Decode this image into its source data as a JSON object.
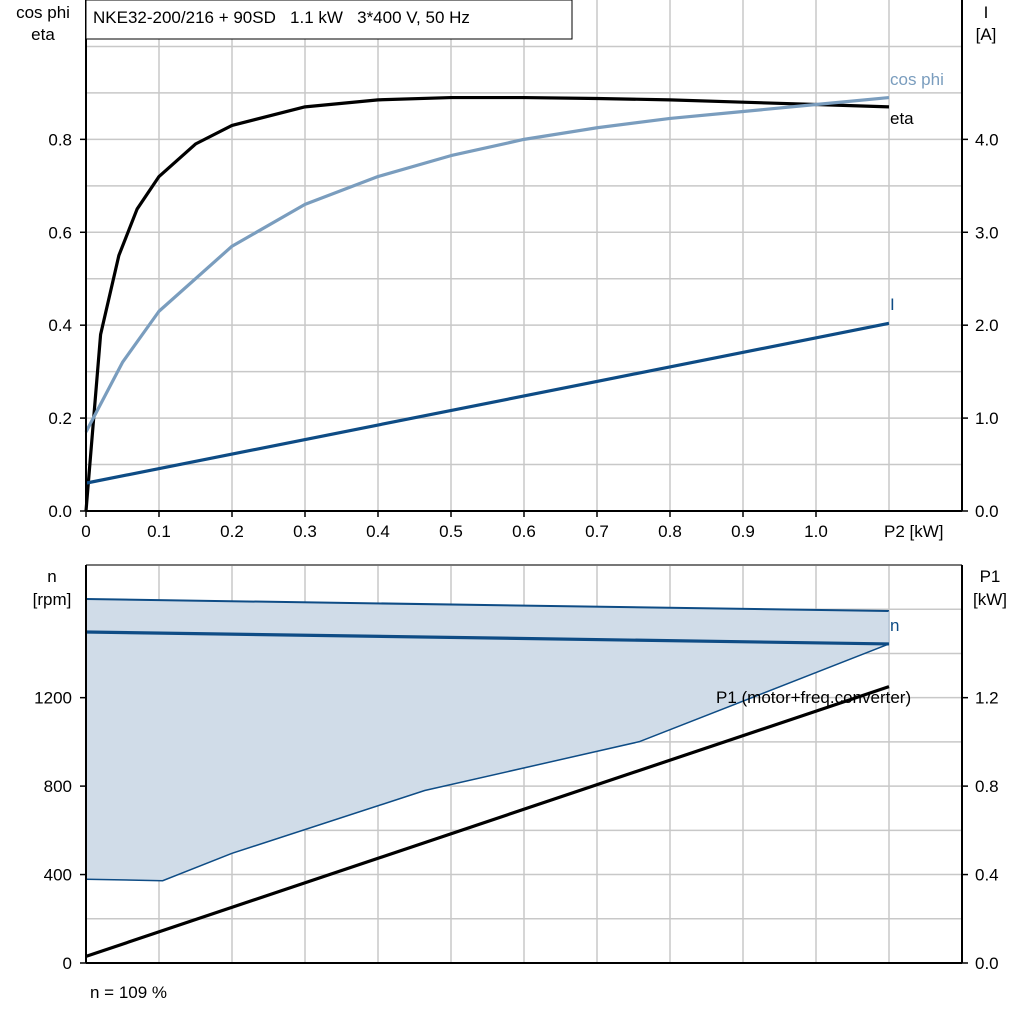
{
  "chart_data": [
    {
      "type": "line",
      "title": "NKE32-200/216 + 90SD   1.1 kW   3*400 V, 50 Hz",
      "xlabel": "P2 [kW]",
      "ylabel_left": [
        "cos phi",
        "eta"
      ],
      "ylabel_right": [
        "I",
        "[A]"
      ],
      "xlim": [
        0,
        1.2
      ],
      "ylim_left": [
        0,
        1.1
      ],
      "ylim_right": [
        0,
        5.5
      ],
      "x_ticks": [
        "0",
        "0.1",
        "0.2",
        "0.3",
        "0.4",
        "0.5",
        "0.6",
        "0.7",
        "0.8",
        "0.9",
        "1.0"
      ],
      "y_ticks_left": [
        "0.0",
        "0.2",
        "0.4",
        "0.6",
        "0.8"
      ],
      "y_ticks_right": [
        "0.0",
        "1.0",
        "2.0",
        "3.0",
        "4.0"
      ],
      "grid": true,
      "series": [
        {
          "name": "eta",
          "axis": "left",
          "color": "#000000",
          "x": [
            0,
            0.02,
            0.045,
            0.07,
            0.1,
            0.15,
            0.2,
            0.3,
            0.4,
            0.5,
            0.6,
            0.7,
            0.8,
            0.9,
            1.0,
            1.1
          ],
          "y": [
            0,
            0.38,
            0.55,
            0.65,
            0.72,
            0.79,
            0.83,
            0.87,
            0.885,
            0.89,
            0.89,
            0.888,
            0.885,
            0.88,
            0.875,
            0.87
          ]
        },
        {
          "name": "cos phi",
          "axis": "left",
          "color": "#7A9DBE",
          "x": [
            0,
            0.05,
            0.1,
            0.2,
            0.3,
            0.4,
            0.5,
            0.6,
            0.7,
            0.8,
            0.9,
            1.0,
            1.1
          ],
          "y": [
            0.17,
            0.32,
            0.43,
            0.57,
            0.66,
            0.72,
            0.765,
            0.8,
            0.825,
            0.845,
            0.86,
            0.875,
            0.89
          ]
        },
        {
          "name": "I",
          "axis": "right",
          "color": "#0E4C85",
          "x": [
            0,
            1.1
          ],
          "y": [
            0.3,
            2.02
          ]
        }
      ]
    },
    {
      "type": "line",
      "xlim": [
        0,
        1.2
      ],
      "ylabel_left": [
        "n",
        "[rpm]"
      ],
      "ylabel_right": [
        "P1",
        "[kW]"
      ],
      "ylim_left": [
        0,
        1800
      ],
      "ylim_right": [
        0,
        1.8
      ],
      "y_ticks_left": [
        "0",
        "400",
        "800",
        "1200"
      ],
      "y_ticks_right": [
        "0.0",
        "0.4",
        "0.8",
        "1.2"
      ],
      "grid": true,
      "footnote": "n = 109 %",
      "band": {
        "color": "#D0DCE8",
        "upper": {
          "x": [
            0,
            1.1
          ],
          "y": [
            1646,
            1592
          ]
        },
        "lower": {
          "x": [
            0,
            0.105,
            0.2,
            0.464,
            0.758,
            1.1
          ],
          "y": [
            379,
            372,
            496,
            780,
            1001,
            1443
          ]
        }
      },
      "series": [
        {
          "name": "n",
          "axis": "left",
          "color": "#0E4C85",
          "x": [
            0,
            1.1
          ],
          "y": [
            1497,
            1443
          ]
        },
        {
          "name": "P1 (motor+freq.converter)",
          "axis": "right",
          "color": "#000000",
          "x": [
            0,
            1.1
          ],
          "y": [
            0.03,
            1.25
          ]
        }
      ]
    }
  ]
}
